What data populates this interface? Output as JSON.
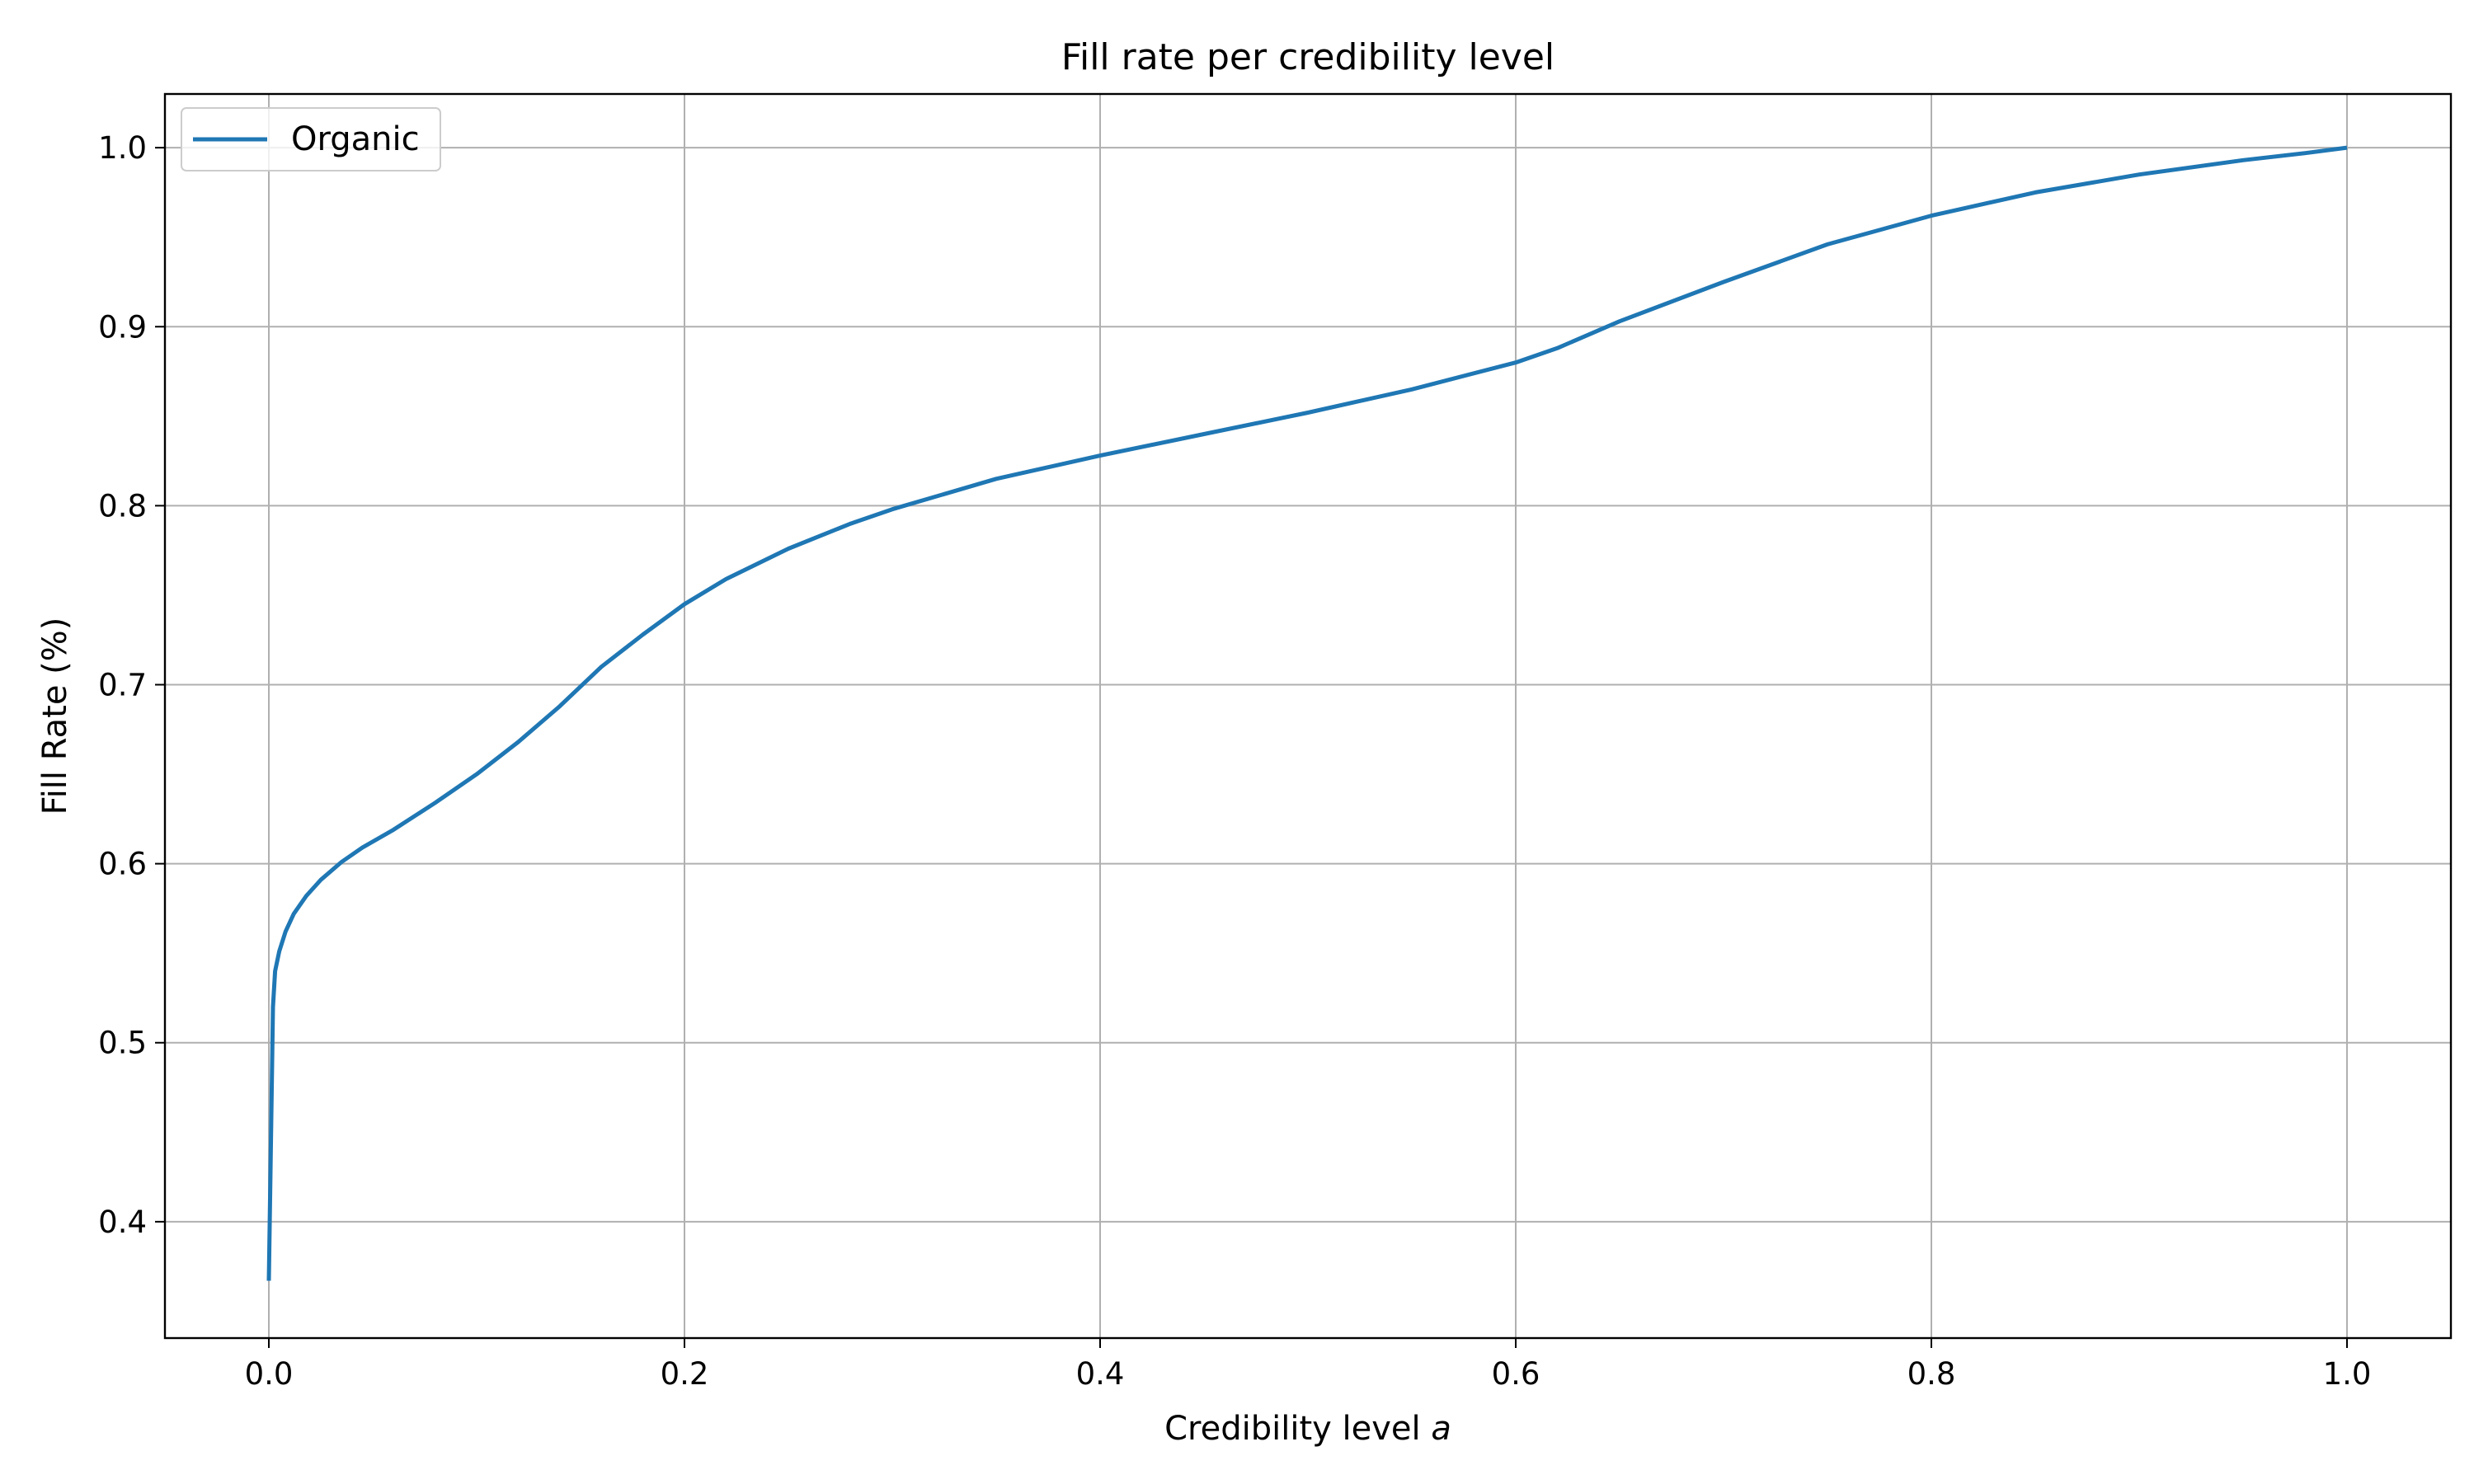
{
  "chart_data": {
    "type": "line",
    "title": "Fill rate per credibility level",
    "xlabel": "Credibility level a",
    "xlabel_parts": {
      "text": "Credibility level ",
      "italic": "a"
    },
    "ylabel": "Fill Rate (%)",
    "xlim": [
      -0.05,
      1.05
    ],
    "ylim": [
      0.335,
      1.03
    ],
    "xticks": [
      0.0,
      0.2,
      0.4,
      0.6,
      0.8,
      1.0
    ],
    "xtick_labels": [
      "0.0",
      "0.2",
      "0.4",
      "0.6",
      "0.8",
      "1.0"
    ],
    "yticks": [
      0.4,
      0.5,
      0.6,
      0.7,
      0.8,
      0.9,
      1.0
    ],
    "ytick_labels": [
      "0.4",
      "0.5",
      "0.6",
      "0.7",
      "0.8",
      "0.9",
      "1.0"
    ],
    "grid": true,
    "legend_position": "upper-left",
    "series": [
      {
        "name": "Organic",
        "color": "#1f77b4",
        "x": [
          0.0,
          0.002,
          0.003,
          0.005,
          0.008,
          0.012,
          0.018,
          0.025,
          0.035,
          0.045,
          0.06,
          0.08,
          0.1,
          0.12,
          0.14,
          0.16,
          0.18,
          0.2,
          0.22,
          0.25,
          0.28,
          0.3,
          0.35,
          0.4,
          0.45,
          0.5,
          0.55,
          0.6,
          0.62,
          0.65,
          0.7,
          0.75,
          0.8,
          0.85,
          0.9,
          0.95,
          0.98,
          1.0
        ],
        "y": [
          0.367,
          0.52,
          0.54,
          0.551,
          0.562,
          0.572,
          0.582,
          0.591,
          0.601,
          0.609,
          0.619,
          0.634,
          0.65,
          0.668,
          0.688,
          0.71,
          0.728,
          0.745,
          0.759,
          0.776,
          0.79,
          0.798,
          0.815,
          0.828,
          0.84,
          0.852,
          0.865,
          0.88,
          0.888,
          0.903,
          0.925,
          0.946,
          0.962,
          0.975,
          0.985,
          0.993,
          0.997,
          1.0
        ]
      }
    ]
  }
}
